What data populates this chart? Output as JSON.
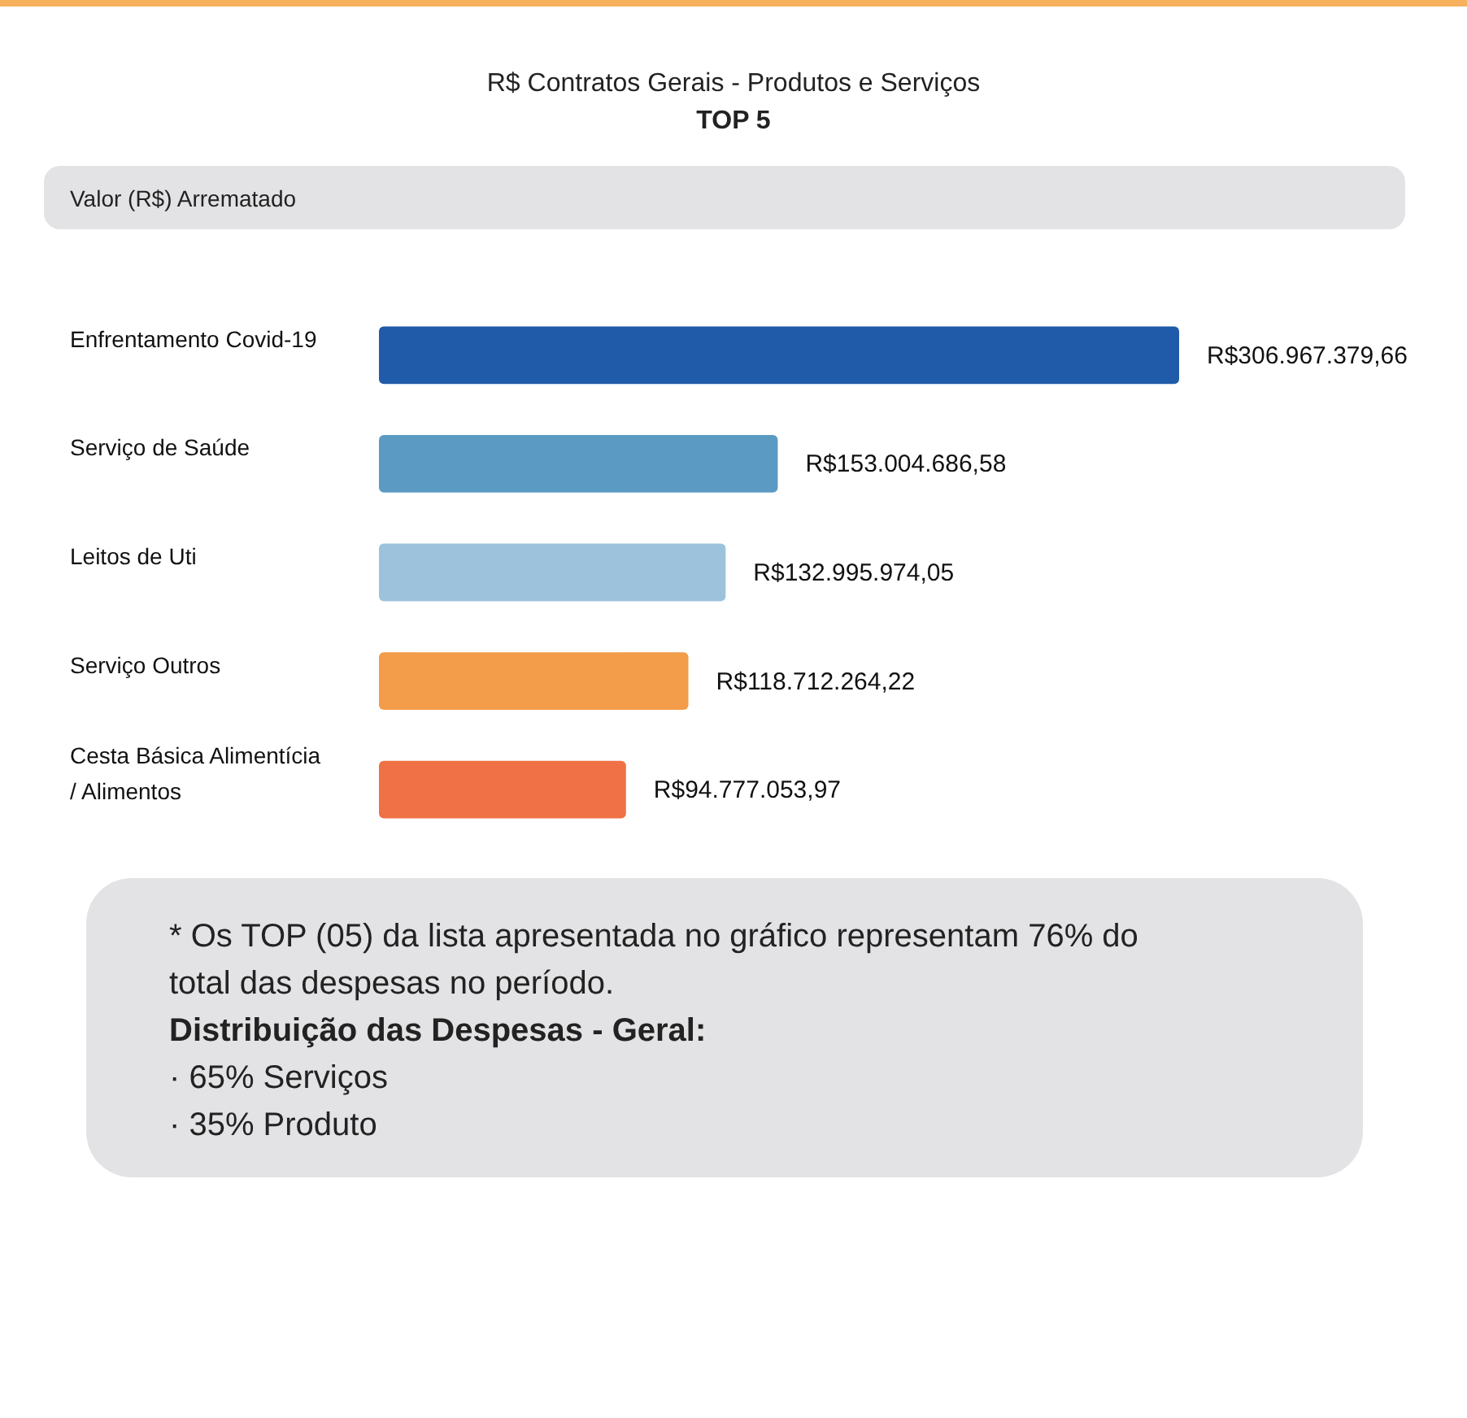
{
  "chart_data": {
    "type": "bar",
    "orientation": "horizontal",
    "title": "R$ Contratos Gerais - Produtos e Serviços",
    "subtitle": "TOP 5",
    "xlabel": "Valor (R$) Arrematado",
    "categories": [
      "Enfrentamento Covid-19",
      "Serviço de Saúde",
      "Leitos de Uti",
      "Serviço Outros",
      "Cesta Básica Alimentícia / Alimentos"
    ],
    "values": [
      306967379.66,
      153004686.58,
      132995974.05,
      118712264.22,
      94777053.97
    ],
    "colors": [
      "#1f5ba8",
      "#5b9bc3",
      "#9dc3dc",
      "#f39c4a",
      "#ef7145"
    ],
    "value_labels": [
      "R$306.967.379,66",
      "R$153.004.686,58",
      "R$132.995.974,05",
      "R$118.712.264,22",
      "R$94.777.053,97"
    ],
    "annotations": [
      "* Os TOP (05) da lista apresentada no gráfico representam 76% do total das despesas no período.",
      "Distribuição das Despesas - Geral:",
      "· 65% Serviços",
      "· 35% Produto"
    ]
  }
}
